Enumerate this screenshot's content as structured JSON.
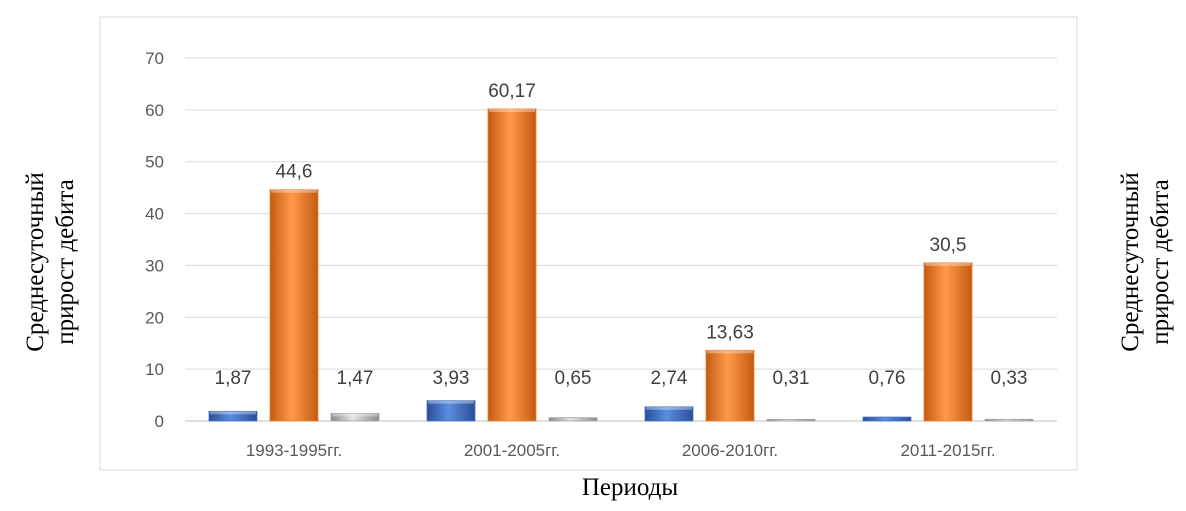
{
  "chart_data": {
    "type": "bar",
    "categories": [
      "1993-1995гг.",
      "2001-2005гг.",
      "2006-2010гг.",
      "2011-2015гг."
    ],
    "series": [
      {
        "values": [
          1.87,
          3.93,
          2.74,
          0.76
        ],
        "color": "#4472c4"
      },
      {
        "values": [
          44.6,
          60.17,
          13.63,
          30.5
        ],
        "color": "#ed7d31"
      },
      {
        "values": [
          1.47,
          0.65,
          0.31,
          0.33
        ],
        "color": "#a5a5a5"
      }
    ],
    "data_labels": [
      [
        "1,87",
        "3,93",
        "2,74",
        "0,76"
      ],
      [
        "44,6",
        "60,17",
        "13,63",
        "30,5"
      ],
      [
        "1,47",
        "0,65",
        "0,31",
        "0,33"
      ]
    ],
    "y_ticks": [
      0,
      10,
      20,
      30,
      40,
      50,
      60,
      70
    ],
    "y_tick_labels": [
      "0",
      "10",
      "20",
      "30",
      "40",
      "50",
      "60",
      "70"
    ],
    "ylim": [
      0,
      70
    ],
    "xlabel": "Периоды",
    "ylabel_left": [
      "Среднесуточный",
      "прирост дебита"
    ],
    "ylabel_right": [
      "Среднесуточный",
      "прирост дебита"
    ],
    "grid": true,
    "legend": false
  }
}
